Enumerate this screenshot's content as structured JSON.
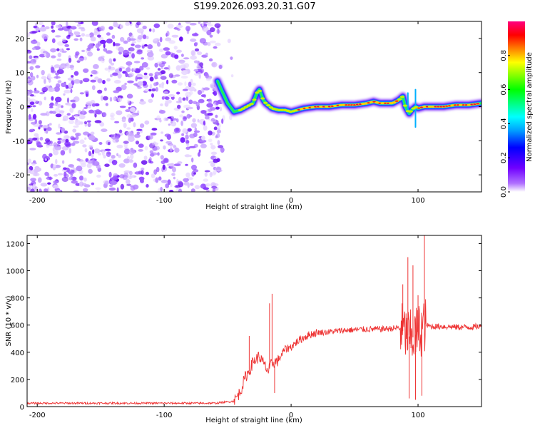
{
  "title": "S199.2026.093.20.31.G07",
  "chart_data": [
    {
      "type": "heatmap",
      "name": "spectrogram",
      "xlabel": "Height of straight line (km)",
      "ylabel": "Frequency (Hz)",
      "xlim": [
        -208,
        150
      ],
      "ylim": [
        -25,
        25
      ],
      "xticks": [
        -200,
        -100,
        0,
        100
      ],
      "xticklabels": [
        "-200",
        "-100",
        "0",
        "100"
      ],
      "yticks": [
        -20,
        -10,
        0,
        10,
        20
      ],
      "yticklabels": [
        "-20",
        "-10",
        "0",
        "10",
        "20"
      ],
      "noise_region_x": [
        -208,
        -55
      ],
      "ridge": {
        "x": [
          -58,
          -55,
          -50,
          -45,
          -40,
          -35,
          -30,
          -27,
          -25,
          -22,
          -20,
          -15,
          -10,
          -5,
          0,
          5,
          10,
          20,
          30,
          40,
          50,
          60,
          65,
          70,
          80,
          85,
          88,
          90,
          93,
          95,
          98,
          100,
          105,
          110,
          120,
          130,
          140,
          150
        ],
        "y": [
          7.5,
          5,
          1,
          -1.5,
          -1,
          0,
          1,
          4,
          5,
          2,
          1,
          -0.5,
          -1,
          -1,
          -1.5,
          -1,
          -0.5,
          0,
          0,
          0.5,
          0.5,
          1,
          1.5,
          1,
          1,
          2,
          3,
          0,
          -2,
          -1,
          0,
          -0.5,
          0,
          0,
          0,
          0.5,
          0.5,
          1
        ]
      },
      "colorbar": {
        "label": "Normalized spectral amplitude",
        "range": [
          0,
          1
        ],
        "ticks": [
          0.0,
          0.2,
          0.4,
          0.6,
          0.8
        ],
        "ticklabels": [
          "0.0",
          "0.2",
          "0.4",
          "0.6",
          "0.8"
        ]
      }
    },
    {
      "type": "line",
      "name": "snr",
      "xlabel": "Height of straight line (km)",
      "ylabel": "SNR (10 * v/v)",
      "xlim": [
        -208,
        150
      ],
      "ylim": [
        0,
        1260
      ],
      "xticks": [
        -200,
        -100,
        0,
        100
      ],
      "xticklabels": [
        "-200",
        "-100",
        "0",
        "100"
      ],
      "yticks": [
        0,
        200,
        400,
        600,
        800,
        1000,
        1200
      ],
      "yticklabels": [
        "0",
        "200",
        "400",
        "600",
        "800",
        "1000",
        "1200"
      ],
      "color": "#ee3333",
      "envelope": {
        "x": [
          -208,
          -60,
          -45,
          -40,
          -36,
          -33,
          -30,
          -25,
          -22,
          -18,
          -15,
          -10,
          -5,
          0,
          5,
          10,
          15,
          20,
          30,
          40,
          50,
          60,
          70,
          80,
          85,
          95,
          105,
          110,
          120,
          130,
          140,
          150
        ],
        "y": [
          25,
          25,
          40,
          110,
          220,
          260,
          330,
          370,
          320,
          260,
          320,
          340,
          420,
          440,
          480,
          510,
          530,
          545,
          550,
          560,
          565,
          570,
          570,
          575,
          580,
          500,
          600,
          590,
          590,
          585,
          585,
          590
        ]
      },
      "spikes": [
        {
          "x": -33,
          "y": 520
        },
        {
          "x": -15,
          "y": 830
        },
        {
          "x": -17,
          "y": 760
        },
        {
          "x": -13,
          "y": 100
        },
        {
          "x": 88,
          "y": 900
        },
        {
          "x": 92,
          "y": 1100
        },
        {
          "x": 93,
          "y": 60
        },
        {
          "x": 96,
          "y": 1040
        },
        {
          "x": 98,
          "y": 50
        },
        {
          "x": 100,
          "y": 820
        },
        {
          "x": 103,
          "y": 80
        },
        {
          "x": 105,
          "y": 1260
        }
      ]
    }
  ]
}
